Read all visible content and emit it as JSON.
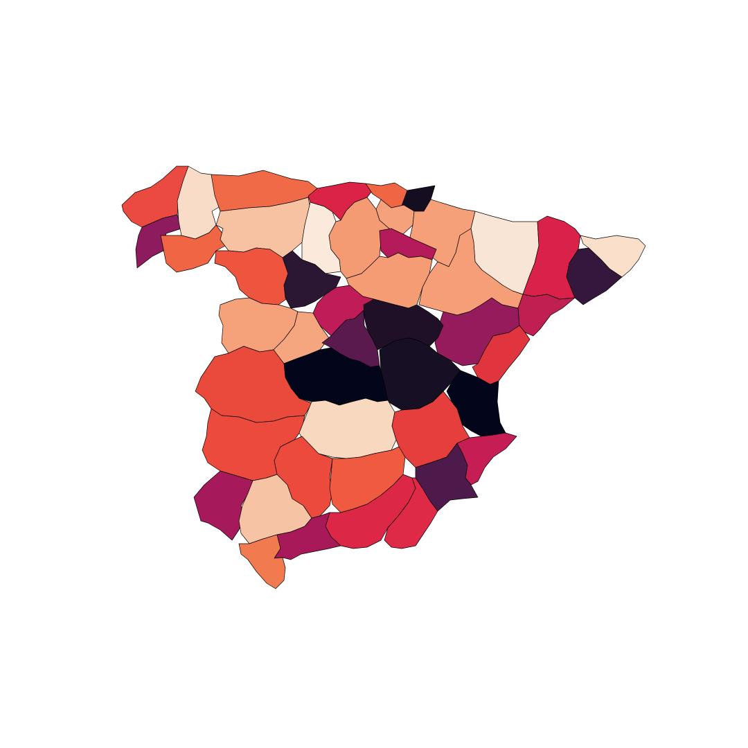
{
  "map": {
    "type": "choropleth",
    "country": "Spain",
    "unit": "provinces",
    "colormap": "rocket",
    "legend": "none",
    "axes": "off",
    "regions": [
      {
        "id": "pontevedra",
        "fill": "#8e1b5e"
      },
      {
        "id": "a-coruna",
        "fill": "#ea4a3f"
      },
      {
        "id": "lugo",
        "fill": "#f8dcc8"
      },
      {
        "id": "ourense",
        "fill": "#f06644"
      },
      {
        "id": "asturias",
        "fill": "#f06a48"
      },
      {
        "id": "cantabria",
        "fill": "#da2346"
      },
      {
        "id": "vizcaya",
        "fill": "#f06644"
      },
      {
        "id": "guipuzcoa",
        "fill": "#150d20"
      },
      {
        "id": "alava",
        "fill": "#f5a27c"
      },
      {
        "id": "navarra",
        "fill": "#f6a07a"
      },
      {
        "id": "leon",
        "fill": "#f7c2a1"
      },
      {
        "id": "palencia",
        "fill": "#fbeadc"
      },
      {
        "id": "burgos",
        "fill": "#f59b74"
      },
      {
        "id": "la-rioja",
        "fill": "#b51b5b"
      },
      {
        "id": "zamora",
        "fill": "#ef553e"
      },
      {
        "id": "valladolid",
        "fill": "#2b1634"
      },
      {
        "id": "soria",
        "fill": "#f59c74"
      },
      {
        "id": "segovia",
        "fill": "#c01c57"
      },
      {
        "id": "salamanca",
        "fill": "#f5a17a"
      },
      {
        "id": "avila",
        "fill": "#f6a67f"
      },
      {
        "id": "huesca",
        "fill": "#f9e5d6"
      },
      {
        "id": "zaragoza",
        "fill": "#f59e78"
      },
      {
        "id": "teruel",
        "fill": "#951b5d"
      },
      {
        "id": "lleida",
        "fill": "#d9214a"
      },
      {
        "id": "girona",
        "fill": "#fadfca"
      },
      {
        "id": "barcelona",
        "fill": "#35163c"
      },
      {
        "id": "tarragona",
        "fill": "#bf1f51"
      },
      {
        "id": "guadalajara",
        "fill": "#1f1028"
      },
      {
        "id": "madrid",
        "fill": "#5a1a4d"
      },
      {
        "id": "caceres",
        "fill": "#ea4a3b"
      },
      {
        "id": "toledo",
        "fill": "#03051b"
      },
      {
        "id": "cuenca",
        "fill": "#170f24"
      },
      {
        "id": "castellon",
        "fill": "#e0353e"
      },
      {
        "id": "valencia",
        "fill": "#03051b"
      },
      {
        "id": "badajoz",
        "fill": "#eb4a3c"
      },
      {
        "id": "ciudad-real",
        "fill": "#f8d8bf"
      },
      {
        "id": "albacete",
        "fill": "#e63d3d"
      },
      {
        "id": "alicante",
        "fill": "#c51d54"
      },
      {
        "id": "murcia",
        "fill": "#4d1a4b"
      },
      {
        "id": "huelva",
        "fill": "#a6195b"
      },
      {
        "id": "sevilla",
        "fill": "#f6c4a4"
      },
      {
        "id": "cordoba",
        "fill": "#eb4a3c"
      },
      {
        "id": "jaen",
        "fill": "#f05a40"
      },
      {
        "id": "granada",
        "fill": "#dc2746"
      },
      {
        "id": "almeria",
        "fill": "#de2947"
      },
      {
        "id": "malaga",
        "fill": "#a8195a"
      },
      {
        "id": "cadiz",
        "fill": "#f27a4f"
      }
    ]
  }
}
